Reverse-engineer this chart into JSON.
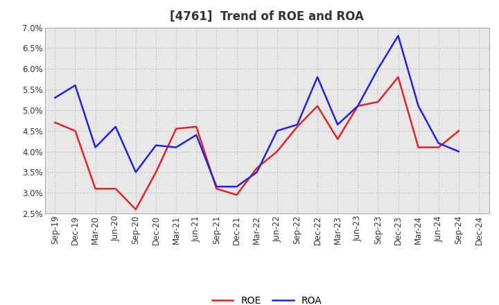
{
  "title": "[4761]  Trend of ROE and ROA",
  "x_labels": [
    "Sep-19",
    "Dec-19",
    "Mar-20",
    "Jun-20",
    "Sep-20",
    "Dec-20",
    "Mar-21",
    "Jun-21",
    "Sep-21",
    "Dec-21",
    "Mar-22",
    "Jun-22",
    "Sep-22",
    "Dec-22",
    "Mar-23",
    "Jun-23",
    "Sep-23",
    "Dec-23",
    "Mar-24",
    "Jun-24",
    "Sep-24",
    "Dec-24"
  ],
  "roe": [
    4.7,
    4.5,
    3.1,
    3.1,
    2.6,
    3.5,
    4.55,
    4.6,
    3.1,
    2.95,
    3.6,
    4.0,
    4.6,
    5.1,
    4.3,
    5.1,
    5.2,
    5.8,
    4.1,
    4.1,
    4.5,
    null
  ],
  "roa": [
    5.3,
    5.6,
    4.1,
    4.6,
    3.5,
    4.15,
    4.1,
    4.4,
    3.15,
    3.15,
    3.5,
    4.5,
    4.65,
    5.8,
    4.65,
    5.1,
    6.0,
    6.8,
    5.1,
    4.2,
    4.0,
    null
  ],
  "roe_color": "#e82020",
  "roa_color": "#2020e8",
  "ylim": [
    2.5,
    7.0
  ],
  "yticks": [
    2.5,
    3.0,
    3.5,
    4.0,
    4.5,
    5.0,
    5.5,
    6.0,
    6.5,
    7.0
  ],
  "background_color": "#ffffff",
  "plot_bg_color": "#e8e8e8",
  "grid_color": "#bbbbbb",
  "legend_labels": [
    "ROE",
    "ROA"
  ],
  "title_fontsize": 12,
  "tick_fontsize": 8.5,
  "legend_fontsize": 10
}
